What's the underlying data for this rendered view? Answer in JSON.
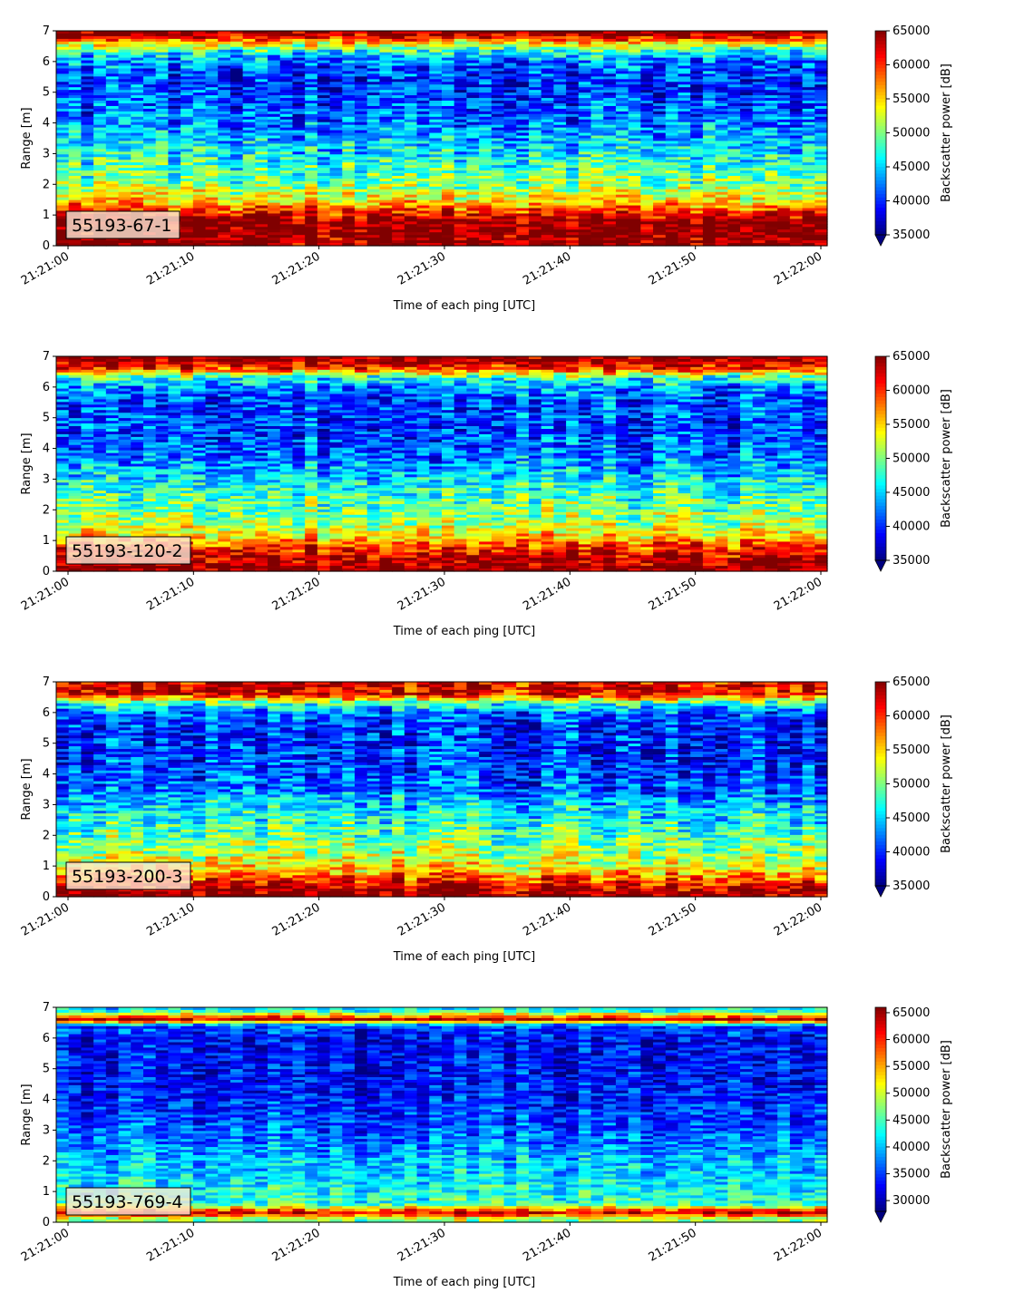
{
  "chart_data": [
    {
      "type": "heatmap",
      "panel_label": "55193-67-1",
      "xlabel": "Time of each ping [UTC]",
      "ylabel": "Range [m]",
      "x_ticks": [
        "21:21:00",
        "21:21:10",
        "21:21:20",
        "21:21:30",
        "21:21:40",
        "21:21:50",
        "21:22:00"
      ],
      "xlim": [
        "21:21:00",
        "21:22:00"
      ],
      "ylim": [
        0,
        7
      ],
      "y_ticks": [
        0,
        1,
        2,
        3,
        4,
        5,
        6,
        7
      ],
      "colorbar": {
        "label": "Backscatter power [dB]",
        "colormap": "jet",
        "vmin": 35000,
        "vmax": 65000,
        "ticks": [
          35000,
          40000,
          45000,
          50000,
          55000,
          60000,
          65000
        ],
        "extend": "min"
      },
      "profile": {
        "range_m": [
          0.1,
          0.4,
          0.8,
          1.1,
          1.5,
          2.0,
          2.5,
          3.0,
          3.5,
          4.0,
          4.5,
          5.0,
          5.5,
          6.0,
          6.3,
          6.6,
          6.9
        ],
        "typical_power": [
          65000,
          65000,
          65000,
          60000,
          54000,
          50000,
          48000,
          46000,
          44000,
          42000,
          41000,
          40000,
          40000,
          42000,
          46000,
          54000,
          65000
        ]
      }
    },
    {
      "type": "heatmap",
      "panel_label": "55193-120-2",
      "xlabel": "Time of each ping [UTC]",
      "ylabel": "Range [m]",
      "x_ticks": [
        "21:21:00",
        "21:21:10",
        "21:21:20",
        "21:21:30",
        "21:21:40",
        "21:21:50",
        "21:22:00"
      ],
      "xlim": [
        "21:21:00",
        "21:22:00"
      ],
      "ylim": [
        0,
        7
      ],
      "y_ticks": [
        0,
        1,
        2,
        3,
        4,
        5,
        6,
        7
      ],
      "colorbar": {
        "label": "Backscatter power [dB]",
        "colormap": "jet",
        "vmin": 35000,
        "vmax": 65000,
        "ticks": [
          35000,
          40000,
          45000,
          50000,
          55000,
          60000,
          65000
        ],
        "extend": "min"
      },
      "profile": {
        "range_m": [
          0.1,
          0.4,
          0.8,
          1.1,
          1.5,
          2.0,
          2.5,
          3.0,
          3.5,
          4.0,
          4.5,
          5.0,
          5.5,
          6.0,
          6.3,
          6.6,
          6.9
        ],
        "typical_power": [
          65000,
          64000,
          60000,
          55000,
          52000,
          50000,
          48000,
          46000,
          43000,
          42000,
          41000,
          41000,
          41000,
          43000,
          48000,
          60000,
          65000
        ]
      }
    },
    {
      "type": "heatmap",
      "panel_label": "55193-200-3",
      "xlabel": "Time of each ping [UTC]",
      "ylabel": "Range [m]",
      "x_ticks": [
        "21:21:00",
        "21:21:10",
        "21:21:20",
        "21:21:30",
        "21:21:40",
        "21:21:50",
        "21:22:00"
      ],
      "xlim": [
        "21:21:00",
        "21:22:00"
      ],
      "ylim": [
        0,
        7
      ],
      "y_ticks": [
        0,
        1,
        2,
        3,
        4,
        5,
        6,
        7
      ],
      "colorbar": {
        "label": "Backscatter power [dB]",
        "colormap": "jet",
        "vmin": 35000,
        "vmax": 65000,
        "ticks": [
          35000,
          40000,
          45000,
          50000,
          55000,
          60000,
          65000
        ],
        "extend": "min"
      },
      "profile": {
        "range_m": [
          0.1,
          0.4,
          0.8,
          1.1,
          1.5,
          2.0,
          2.5,
          3.0,
          3.5,
          4.0,
          4.5,
          5.0,
          5.5,
          6.0,
          6.3,
          6.6,
          6.9
        ],
        "typical_power": [
          65000,
          62000,
          56000,
          53000,
          51000,
          49000,
          47000,
          45000,
          42000,
          41000,
          40000,
          40000,
          40000,
          42000,
          48000,
          62000,
          62000
        ]
      }
    },
    {
      "type": "heatmap",
      "panel_label": "55193-769-4",
      "xlabel": "Time of each ping [UTC]",
      "ylabel": "Range [m]",
      "x_ticks": [
        "21:21:00",
        "21:21:10",
        "21:21:20",
        "21:21:30",
        "21:21:40",
        "21:21:50",
        "21:22:00"
      ],
      "xlim": [
        "21:21:00",
        "21:22:00"
      ],
      "ylim": [
        0,
        7
      ],
      "y_ticks": [
        0,
        1,
        2,
        3,
        4,
        5,
        6,
        7
      ],
      "colorbar": {
        "label": "Backscatter power [dB]",
        "colormap": "jet",
        "vmin": 28000,
        "vmax": 66000,
        "ticks": [
          30000,
          35000,
          40000,
          45000,
          50000,
          55000,
          60000,
          65000
        ],
        "extend": "min"
      },
      "profile": {
        "range_m": [
          0.1,
          0.3,
          0.6,
          1.0,
          1.5,
          2.0,
          2.5,
          3.0,
          3.5,
          4.0,
          4.5,
          5.0,
          5.5,
          6.0,
          6.4,
          6.6,
          6.9
        ],
        "typical_power": [
          48000,
          64000,
          44000,
          43000,
          41000,
          40000,
          38000,
          36000,
          35000,
          34000,
          33000,
          33000,
          33000,
          33000,
          36000,
          64000,
          42000
        ]
      }
    }
  ]
}
